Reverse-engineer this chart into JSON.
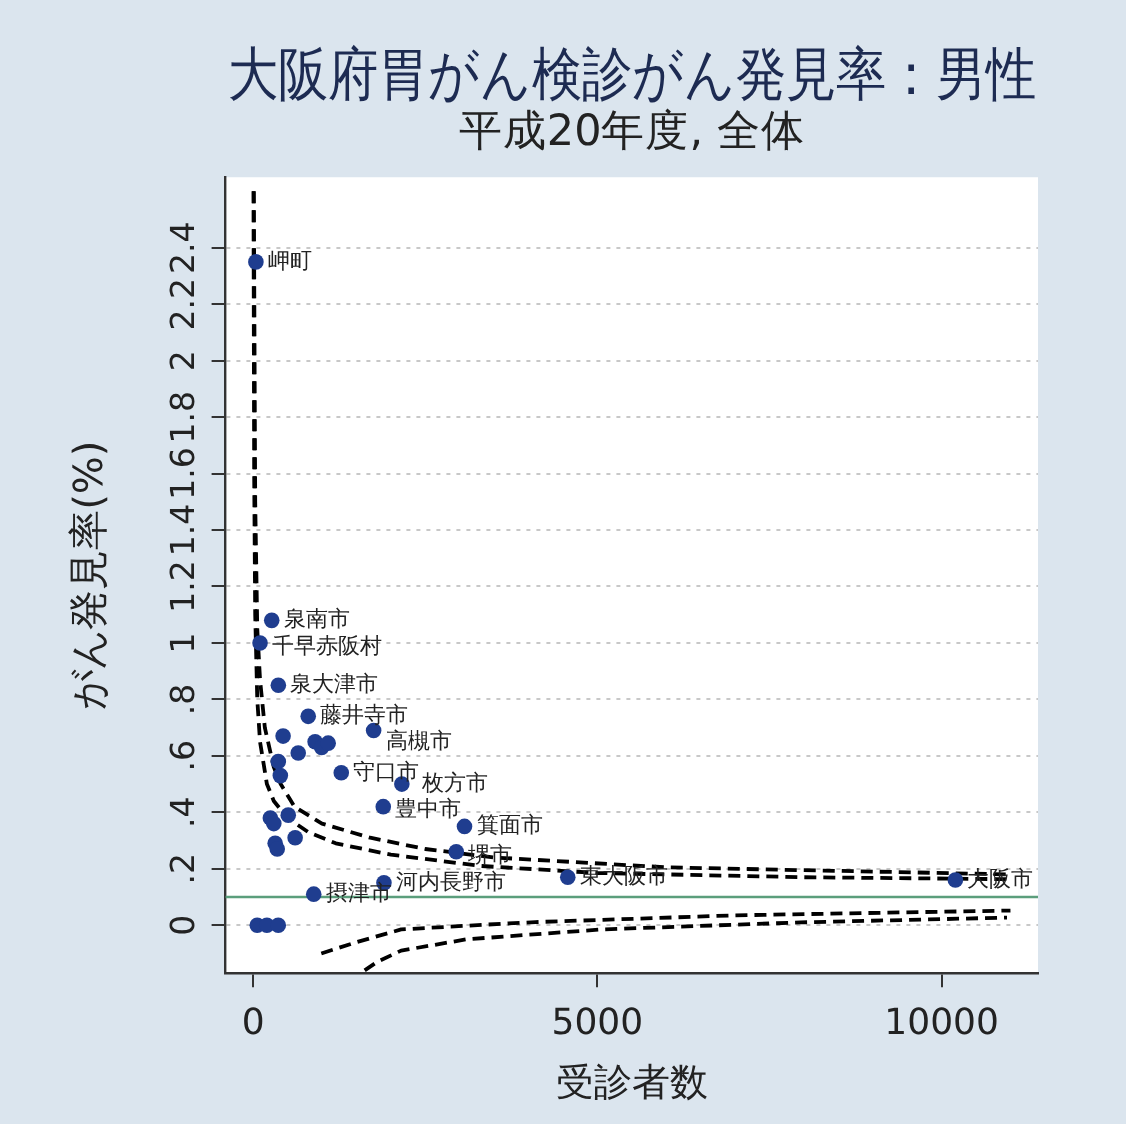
{
  "chart_data": {
    "type": "scatter",
    "title": "大阪府胃がん検診がん発見率：男性",
    "subtitle": "平成20年度, 全体",
    "xlabel": "受診者数",
    "ylabel": "がん発見率(%)",
    "xlim": [
      -400,
      11400
    ],
    "xticks": [
      0,
      5000,
      10000
    ],
    "ylim": [
      -0.17,
      2.65
    ],
    "yticks": [
      0,
      {
        "value": 0.2,
        "label": ".2"
      },
      {
        "value": 0.4,
        "label": ".4"
      },
      {
        "value": 0.6,
        "label": ".6"
      },
      {
        "value": 0.8,
        "label": ".8"
      },
      1,
      1.2,
      1.4,
      1.6,
      1.8,
      2,
      2.2,
      2.4
    ],
    "grid": "y",
    "series": [
      {
        "color": "#1f3d8f",
        "marker": "circle",
        "x": [
          40,
          270,
          100,
          366,
          800,
          1750,
          1280,
          2160,
          1890,
          3070,
          2950,
          880,
          1900,
          4570,
          10200,
          435,
          900,
          995,
          1090,
          655,
          365,
          395,
          250,
          300,
          510,
          320,
          350,
          610,
          60,
          200,
          365
        ],
        "values": [
          2.35,
          1.08,
          1.0,
          0.85,
          0.74,
          0.69,
          0.54,
          0.5,
          0.42,
          0.35,
          0.26,
          0.11,
          0.15,
          0.17,
          0.16,
          0.67,
          0.65,
          0.63,
          0.645,
          0.61,
          0.58,
          0.53,
          0.38,
          0.36,
          0.39,
          0.29,
          0.27,
          0.31,
          0,
          0,
          0
        ]
      },
      {
        "type": "line",
        "color": "#000000",
        "line_style": "dashed",
        "marker": "none",
        "x": [
          10,
          30,
          60,
          100,
          170,
          300,
          400,
          600,
          1000,
          1700,
          2500,
          3500,
          6000,
          8000,
          11000
        ],
        "values": [
          2.6,
          1.5,
          1.05,
          0.87,
          0.7,
          0.56,
          0.5,
          0.42,
          0.36,
          0.31,
          0.27,
          0.24,
          0.205,
          0.195,
          0.18
        ]
      },
      {
        "type": "line",
        "color": "#000000",
        "line_style": "dashed",
        "marker": "none",
        "x": [
          5,
          15,
          30,
          60,
          100,
          200,
          300,
          500,
          800,
          1200,
          2000,
          3300,
          5000,
          8000,
          11000
        ],
        "values": [
          2.6,
          1.6,
          1.1,
          0.8,
          0.65,
          0.5,
          0.44,
          0.38,
          0.33,
          0.29,
          0.25,
          0.21,
          0.185,
          0.17,
          0.163
        ]
      },
      {
        "type": "line",
        "color": "#000000",
        "line_style": "dashed",
        "marker": "none",
        "x": [
          990,
          1500,
          2150,
          3600,
          4100,
          7000,
          11000
        ],
        "values": [
          -0.1,
          -0.06,
          -0.015,
          0.005,
          0.011,
          0.035,
          0.052
        ]
      },
      {
        "type": "line",
        "color": "#000000",
        "line_style": "dashed",
        "marker": "none",
        "x": [
          1620,
          1800,
          2150,
          3100,
          5050,
          7950,
          10950
        ],
        "values": [
          -0.16,
          -0.13,
          -0.09,
          -0.05,
          -0.015,
          0.01,
          0.027
        ]
      }
    ],
    "ref_lines": [
      {
        "axis": "y",
        "value": 0.1,
        "color": "#5b9e7c"
      }
    ],
    "annotations": [
      {
        "text": "岬町",
        "x": 40,
        "y": 2.35
      },
      {
        "text": "泉南市",
        "x": 270,
        "y": 1.08
      },
      {
        "text": "千早赤阪村",
        "x": 100,
        "y": 1.0
      },
      {
        "text": "泉大津市",
        "x": 366,
        "y": 0.85
      },
      {
        "text": "藤井寺市",
        "x": 800,
        "y": 0.74
      },
      {
        "text": "高槻市",
        "x": 1750,
        "y": 0.69
      },
      {
        "text": "守口市",
        "x": 1280,
        "y": 0.54
      },
      {
        "text": "枚方市",
        "x": 2160,
        "y": 0.5
      },
      {
        "text": "豊中市",
        "x": 1890,
        "y": 0.42
      },
      {
        "text": "箕面市",
        "x": 3070,
        "y": 0.35
      },
      {
        "text": "堺市",
        "x": 2950,
        "y": 0.26
      },
      {
        "text": "摂津市",
        "x": 880,
        "y": 0.11
      },
      {
        "text": "河内長野市",
        "x": 1900,
        "y": 0.15
      },
      {
        "text": "東大阪市",
        "x": 4570,
        "y": 0.17
      },
      {
        "text": "大阪市",
        "x": 10200,
        "y": 0.16
      }
    ]
  }
}
